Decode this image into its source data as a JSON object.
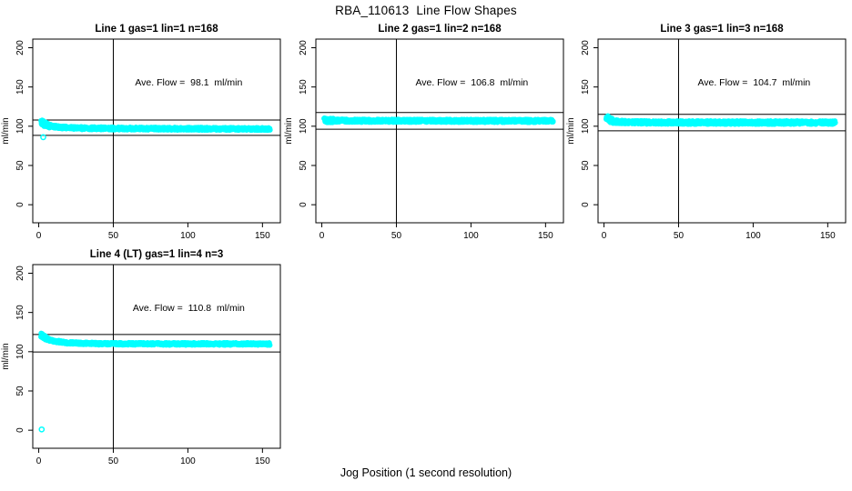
{
  "title": "RBA_110613  Line Flow Shapes",
  "xlabel": "Jog Position (1 second resolution)",
  "colors": {
    "marker": "#00ffff",
    "axis": "#000000",
    "background": "#ffffff"
  },
  "marker": "open-circle",
  "chart_data": [
    {
      "type": "scatter",
      "title": "Line 1 gas=1 lin=1 n=168",
      "annotation": "Ave. Flow =  98.1  ml/min",
      "ave_flow": 98.1,
      "n": 168,
      "ylabel": "ml/min",
      "x_ticks": [
        0,
        50,
        100,
        150
      ],
      "y_ticks": [
        0,
        50,
        100,
        150,
        200
      ],
      "xlim": [
        -4,
        162
      ],
      "ylim": [
        -23,
        211
      ],
      "vline_x": 50,
      "hlines": [
        107.9,
        88.3
      ],
      "profile": [
        [
          2,
          104.5
        ],
        [
          4,
          103
        ],
        [
          8,
          100
        ],
        [
          15,
          98.5
        ],
        [
          30,
          97.5
        ],
        [
          60,
          97
        ],
        [
          100,
          96.8
        ],
        [
          156,
          96.5
        ]
      ],
      "band_halfwidth": 1.8,
      "start_cluster": {
        "x": 2,
        "spread_x": 3,
        "spread_y": 3.5,
        "count": 26
      },
      "outliers": [
        [
          3,
          86
        ]
      ]
    },
    {
      "type": "scatter",
      "title": "Line 2 gas=1 lin=2 n=168",
      "annotation": "Ave. Flow =  106.8  ml/min",
      "ave_flow": 106.8,
      "n": 168,
      "ylabel": "ml/min",
      "x_ticks": [
        0,
        50,
        100,
        150
      ],
      "y_ticks": [
        0,
        50,
        100,
        150,
        200
      ],
      "xlim": [
        -4,
        162
      ],
      "ylim": [
        -23,
        211
      ],
      "vline_x": 50,
      "hlines": [
        117.5,
        96.1
      ],
      "profile": [
        [
          2,
          107.8
        ],
        [
          6,
          107.2
        ],
        [
          20,
          107
        ],
        [
          60,
          106.9
        ],
        [
          156,
          106.8
        ]
      ],
      "band_halfwidth": 2.0,
      "start_cluster": {
        "x": 2,
        "spread_x": 2,
        "spread_y": 2.5,
        "count": 14
      },
      "outliers": []
    },
    {
      "type": "scatter",
      "title": "Line 3 gas=1 lin=3 n=168",
      "annotation": "Ave. Flow =  104.7  ml/min",
      "ave_flow": 104.7,
      "n": 168,
      "ylabel": "ml/min",
      "x_ticks": [
        0,
        50,
        100,
        150
      ],
      "y_ticks": [
        0,
        50,
        100,
        150,
        200
      ],
      "xlim": [
        -4,
        162
      ],
      "ylim": [
        -23,
        211
      ],
      "vline_x": 50,
      "hlines": [
        115.2,
        94.2
      ],
      "profile": [
        [
          2,
          111
        ],
        [
          4,
          108
        ],
        [
          8,
          105.8
        ],
        [
          20,
          105
        ],
        [
          60,
          104.7
        ],
        [
          156,
          104.6
        ]
      ],
      "band_halfwidth": 2.2,
      "start_cluster": {
        "x": 2,
        "spread_x": 2,
        "spread_y": 3,
        "count": 16
      },
      "outliers": []
    },
    {
      "type": "scatter",
      "title": "Line 4 (LT) gas=1 lin=4 n=3",
      "annotation": "Ave. Flow =  110.8  ml/min",
      "ave_flow": 110.8,
      "n": 3,
      "ylabel": "ml/min",
      "x_ticks": [
        0,
        50,
        100,
        150
      ],
      "y_ticks": [
        0,
        50,
        100,
        150,
        200
      ],
      "xlim": [
        -4,
        162
      ],
      "ylim": [
        -23,
        211
      ],
      "vline_x": 50,
      "hlines": [
        121.9,
        99.7
      ],
      "profile": [
        [
          2,
          121
        ],
        [
          5,
          117
        ],
        [
          10,
          113.5
        ],
        [
          20,
          111.3
        ],
        [
          40,
          110.2
        ],
        [
          80,
          110
        ],
        [
          156,
          109.9
        ]
      ],
      "band_halfwidth": 1.6,
      "start_cluster": {
        "x": 2,
        "spread_x": 2,
        "spread_y": 2.5,
        "count": 12
      },
      "outliers": [
        [
          2,
          1
        ]
      ]
    }
  ]
}
